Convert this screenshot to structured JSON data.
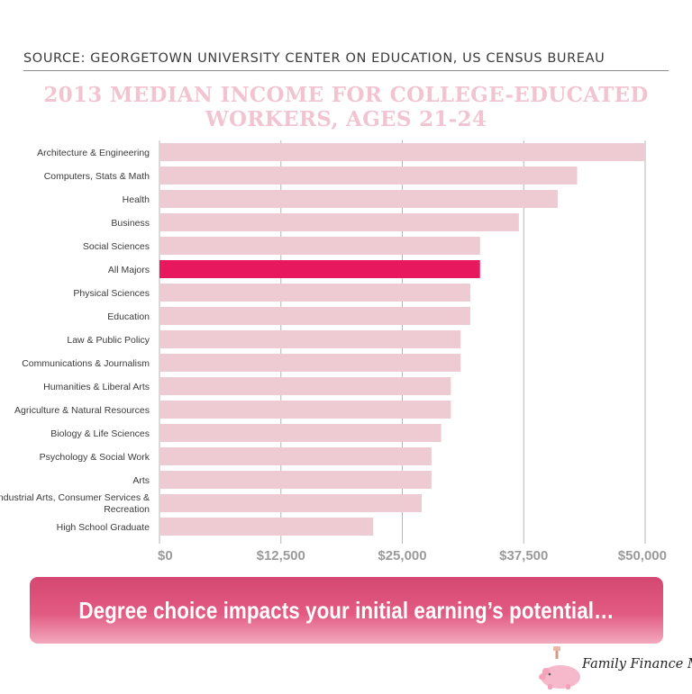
{
  "source": "SOURCE: GEORGETOWN UNIVERSITY CENTER ON EDUCATION, US CENSUS BUREAU",
  "banner": "Degree choice impacts your initial earning’s potential…",
  "logo": {
    "text": "Family Finance Mom",
    "icon": "piggy-bank-icon"
  },
  "colors": {
    "bar": "#eecbd3",
    "highlight": "#e8185e",
    "title": "#f2c4d2",
    "banner": "#e25a82"
  },
  "chart_data": {
    "type": "bar",
    "orientation": "horizontal",
    "title": "2013 MEDIAN INCOME FOR COLLEGE-EDUCATED WORKERS, AGES 21-24",
    "categories": [
      "Architecture & Engineering",
      "Computers, Stats & Math",
      "Health",
      "Business",
      "Social Sciences",
      "All Majors",
      "Physical Sciences",
      "Education",
      "Law & Public Policy",
      "Communications & Journalism",
      "Humanities & Liberal Arts",
      "Agriculture & Natural Resources",
      "Biology & Life Sciences",
      "Psychology & Social Work",
      "Arts",
      "Industrial Arts, Consumer Services & Recreation",
      "High School Graduate"
    ],
    "values": [
      50000,
      43000,
      41000,
      37000,
      33000,
      33000,
      32000,
      32000,
      31000,
      31000,
      30000,
      30000,
      29000,
      28000,
      28000,
      27000,
      22000
    ],
    "highlight_category": "All Majors",
    "xlim": [
      0,
      50000
    ],
    "xticks": [
      0,
      12500,
      25000,
      37500,
      50000
    ],
    "xtick_labels": [
      "$0",
      "$12,500",
      "$25,000",
      "$37,500",
      "$50,000"
    ],
    "grid": "vertical",
    "legend": "none"
  }
}
